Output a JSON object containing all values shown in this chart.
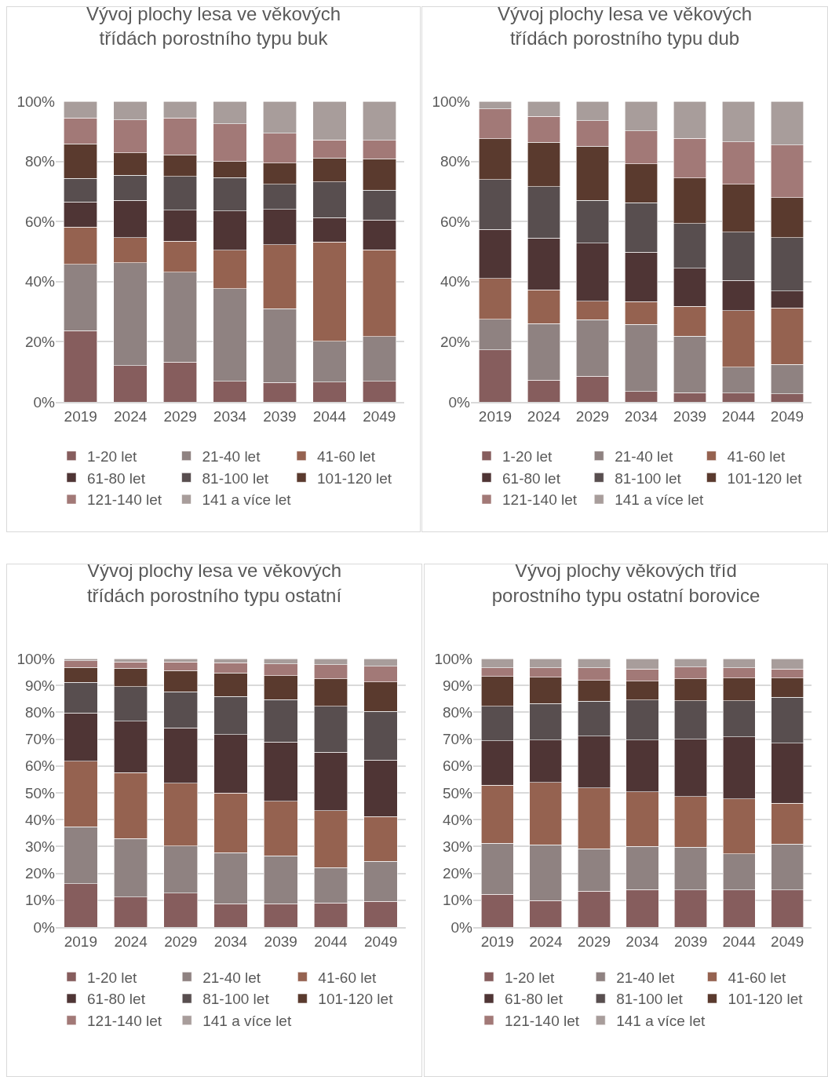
{
  "chart_data": [
    {
      "type": "bar",
      "stacked": true,
      "title": "Vývoj plochy lesa ve věkových\ntřídách porostního typu buk",
      "categories": [
        "2019",
        "2024",
        "2029",
        "2034",
        "2039",
        "2044",
        "2049"
      ],
      "ylim": [
        0,
        100
      ],
      "yticks": [
        {
          "value": 0,
          "label": "0%"
        },
        {
          "value": 20,
          "label": "20%"
        },
        {
          "value": 40,
          "label": "40%"
        },
        {
          "value": 60,
          "label": "60%"
        },
        {
          "value": 80,
          "label": "80%"
        },
        {
          "value": 100,
          "label": "100%"
        }
      ],
      "grid": "y",
      "legend": "bottom",
      "series": [
        {
          "name": "1-20 let",
          "color": "#865d5d",
          "values": [
            23.7,
            12.1,
            13.2,
            6.9,
            6.5,
            6.6,
            6.9
          ]
        },
        {
          "name": "21-40 let",
          "color": "#8f8281",
          "values": [
            22.0,
            34.2,
            29.9,
            30.7,
            24.5,
            13.6,
            14.8
          ]
        },
        {
          "name": "41-60 let",
          "color": "#956250",
          "values": [
            12.4,
            8.4,
            10.4,
            12.8,
            21.3,
            33.0,
            28.9
          ]
        },
        {
          "name": "61-80 let",
          "color": "#4f3535",
          "values": [
            8.4,
            12.4,
            10.3,
            13.1,
            11.7,
            8.1,
            9.9
          ]
        },
        {
          "name": "81-100 let",
          "color": "#584e4f",
          "values": [
            7.8,
            8.3,
            11.2,
            11.1,
            8.4,
            11.9,
            9.9
          ]
        },
        {
          "name": "101-120 let",
          "color": "#5a3a2e",
          "values": [
            11.5,
            7.4,
            7.2,
            5.3,
            7.0,
            7.9,
            10.5
          ]
        },
        {
          "name": "121-140 let",
          "color": "#a27977",
          "values": [
            8.6,
            11.0,
            12.2,
            12.6,
            10.0,
            6.0,
            6.1
          ]
        },
        {
          "name": "141 a více let",
          "color": "#a89d9b",
          "values": [
            5.6,
            6.2,
            5.6,
            7.5,
            10.6,
            12.9,
            13.0
          ]
        }
      ]
    },
    {
      "type": "bar",
      "stacked": true,
      "title": "Vývoj plochy lesa ve věkových\ntřídách porostního typu dub",
      "categories": [
        "2019",
        "2024",
        "2029",
        "2034",
        "2039",
        "2044",
        "2049"
      ],
      "ylim": [
        0,
        100
      ],
      "yticks": [
        {
          "value": 0,
          "label": "0%"
        },
        {
          "value": 20,
          "label": "20%"
        },
        {
          "value": 40,
          "label": "40%"
        },
        {
          "value": 60,
          "label": "60%"
        },
        {
          "value": 80,
          "label": "80%"
        },
        {
          "value": 100,
          "label": "100%"
        }
      ],
      "grid": "y",
      "legend": "bottom",
      "series": [
        {
          "name": "1-20 let",
          "color": "#865d5d",
          "values": [
            17.3,
            7.3,
            8.5,
            3.5,
            3.1,
            3.0,
            2.7
          ]
        },
        {
          "name": "21-40 let",
          "color": "#8f8281",
          "values": [
            10.2,
            18.8,
            18.8,
            22.3,
            18.8,
            8.6,
            9.8
          ]
        },
        {
          "name": "41-60 let",
          "color": "#956250",
          "values": [
            13.6,
            11.2,
            6.2,
            7.5,
            9.9,
            18.8,
            18.8
          ]
        },
        {
          "name": "61-80 let",
          "color": "#4f3535",
          "values": [
            16.3,
            17.2,
            19.3,
            16.5,
            12.7,
            10.0,
            5.6
          ]
        },
        {
          "name": "81-100 let",
          "color": "#584e4f",
          "values": [
            16.5,
            17.1,
            14.2,
            16.4,
            14.9,
            16.0,
            17.8
          ]
        },
        {
          "name": "101-120 let",
          "color": "#5a3a2e",
          "values": [
            13.6,
            14.7,
            18.1,
            13.0,
            15.1,
            16.0,
            13.3
          ]
        },
        {
          "name": "121-140 let",
          "color": "#a27977",
          "values": [
            10.0,
            8.7,
            8.5,
            10.9,
            13.1,
            14.1,
            17.5
          ]
        },
        {
          "name": "141 a více let",
          "color": "#a89d9b",
          "values": [
            2.5,
            5.0,
            6.4,
            9.9,
            12.4,
            13.5,
            14.5
          ]
        }
      ]
    },
    {
      "type": "bar",
      "stacked": true,
      "title": "Vývoj plochy lesa ve věkových\ntřídách porostního typu ostatní",
      "categories": [
        "2019",
        "2024",
        "2029",
        "2034",
        "2039",
        "2044",
        "2049"
      ],
      "ylim": [
        0,
        100
      ],
      "yticks": [
        {
          "value": 0,
          "label": "0%"
        },
        {
          "value": 10,
          "label": "10%"
        },
        {
          "value": 20,
          "label": "20%"
        },
        {
          "value": 30,
          "label": "30%"
        },
        {
          "value": 40,
          "label": "40%"
        },
        {
          "value": 50,
          "label": "50%"
        },
        {
          "value": 60,
          "label": "60%"
        },
        {
          "value": 70,
          "label": "70%"
        },
        {
          "value": 80,
          "label": "80%"
        },
        {
          "value": 90,
          "label": "90%"
        },
        {
          "value": 100,
          "label": "100%"
        }
      ],
      "grid": "y",
      "legend": "bottom",
      "series": [
        {
          "name": "1-20 let",
          "color": "#865d5d",
          "values": [
            16.2,
            11.2,
            12.7,
            8.7,
            8.7,
            9.0,
            9.6
          ]
        },
        {
          "name": "21-40 let",
          "color": "#8f8281",
          "values": [
            21.2,
            21.7,
            17.5,
            19.0,
            17.8,
            13.2,
            14.9
          ]
        },
        {
          "name": "41-60 let",
          "color": "#956250",
          "values": [
            24.4,
            24.6,
            23.4,
            22.2,
            20.4,
            21.2,
            16.7
          ]
        },
        {
          "name": "61-80 let",
          "color": "#4f3535",
          "values": [
            18.0,
            19.2,
            20.6,
            21.8,
            22.1,
            21.8,
            21.0
          ]
        },
        {
          "name": "81-100 let",
          "color": "#584e4f",
          "values": [
            11.3,
            12.8,
            13.5,
            14.2,
            15.7,
            17.0,
            18.1
          ]
        },
        {
          "name": "101-120 let",
          "color": "#5a3a2e",
          "values": [
            5.6,
            6.9,
            7.8,
            8.8,
            9.0,
            10.3,
            11.0
          ]
        },
        {
          "name": "121-140 let",
          "color": "#a27977",
          "values": [
            2.5,
            2.3,
            3.2,
            3.7,
            4.3,
            5.2,
            5.8
          ]
        },
        {
          "name": "141 a více let",
          "color": "#a89d9b",
          "values": [
            0.8,
            1.3,
            1.3,
            1.6,
            2.0,
            2.3,
            2.9
          ]
        }
      ]
    },
    {
      "type": "bar",
      "stacked": true,
      "title": "Vývoj plochy věkových tříd\nporostního typu ostatní borovice",
      "categories": [
        "2019",
        "2024",
        "2029",
        "2034",
        "2039",
        "2044",
        "2049"
      ],
      "ylim": [
        0,
        100
      ],
      "yticks": [
        {
          "value": 0,
          "label": "0%"
        },
        {
          "value": 10,
          "label": "10%"
        },
        {
          "value": 20,
          "label": "20%"
        },
        {
          "value": 30,
          "label": "30%"
        },
        {
          "value": 40,
          "label": "40%"
        },
        {
          "value": 50,
          "label": "50%"
        },
        {
          "value": 60,
          "label": "60%"
        },
        {
          "value": 70,
          "label": "70%"
        },
        {
          "value": 80,
          "label": "80%"
        },
        {
          "value": 90,
          "label": "90%"
        },
        {
          "value": 100,
          "label": "100%"
        }
      ],
      "grid": "y",
      "legend": "bottom",
      "series": [
        {
          "name": "1-20 let",
          "color": "#865d5d",
          "values": [
            12.2,
            9.8,
            13.4,
            14.0,
            13.8,
            13.8,
            13.8
          ]
        },
        {
          "name": "21-40 let",
          "color": "#8f8281",
          "values": [
            19.0,
            20.8,
            15.7,
            16.0,
            16.0,
            13.5,
            17.1
          ]
        },
        {
          "name": "41-60 let",
          "color": "#956250",
          "values": [
            21.7,
            23.3,
            22.7,
            20.3,
            18.8,
            20.4,
            15.3
          ]
        },
        {
          "name": "61-80 let",
          "color": "#4f3535",
          "values": [
            16.5,
            15.7,
            19.3,
            19.3,
            21.4,
            23.2,
            22.3
          ]
        },
        {
          "name": "81-100 let",
          "color": "#584e4f",
          "values": [
            12.9,
            13.6,
            13.0,
            15.0,
            14.3,
            13.4,
            17.1
          ]
        },
        {
          "name": "101-120 let",
          "color": "#5a3a2e",
          "values": [
            11.1,
            9.8,
            7.8,
            7.0,
            8.1,
            8.4,
            7.1
          ]
        },
        {
          "name": "121-140 let",
          "color": "#a27977",
          "values": [
            3.2,
            3.6,
            4.7,
            4.5,
            4.5,
            3.9,
            3.4
          ]
        },
        {
          "name": "141 a více let",
          "color": "#a89d9b",
          "values": [
            3.4,
            3.4,
            3.4,
            3.9,
            3.1,
            3.4,
            3.9
          ]
        }
      ]
    }
  ]
}
